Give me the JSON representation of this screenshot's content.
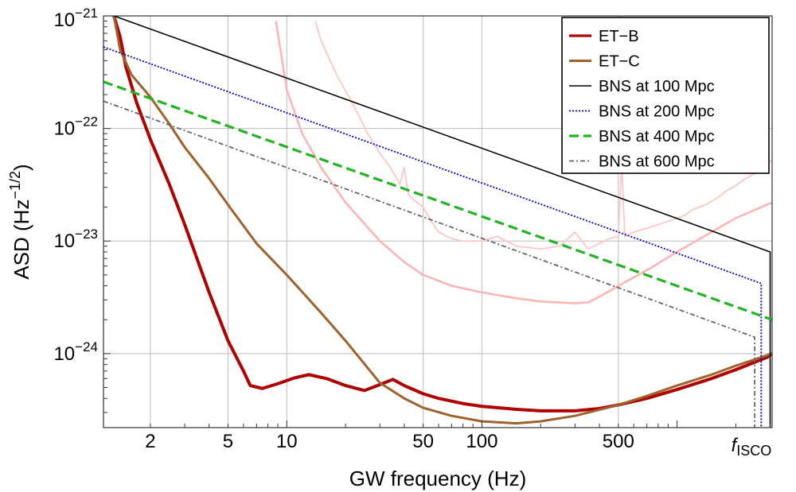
{
  "chart_data": {
    "type": "line",
    "title": "",
    "xlabel": "GW frequency (Hz)",
    "ylabel": "ASD (Hz",
    "ylabel_exp": "−1/2",
    "ylabel_end": ")",
    "xscale": "log",
    "yscale": "log",
    "xlim": [
      1.15,
      3070
    ],
    "ylim": [
      2.2e-25,
      1e-21
    ],
    "grid": true,
    "legend_position": "top-right",
    "x_ticks": [
      {
        "value": 2,
        "label": "2"
      },
      {
        "value": 5,
        "label": "5"
      },
      {
        "value": 10,
        "label": "10"
      },
      {
        "value": 50,
        "label": "50"
      },
      {
        "value": 100,
        "label": "100"
      },
      {
        "value": 500,
        "label": "500"
      }
    ],
    "x_special_label": {
      "value": 2900,
      "label": "f",
      "sub": "ISCO"
    },
    "y_ticks": [
      {
        "value": 1e-21,
        "base": "10",
        "exp": "−21"
      },
      {
        "value": 1e-22,
        "base": "10",
        "exp": "−22"
      },
      {
        "value": 1e-23,
        "base": "10",
        "exp": "−23"
      },
      {
        "value": 1e-24,
        "base": "10",
        "exp": "−24"
      }
    ],
    "series": [
      {
        "name": "ET−B",
        "color": "#b00000",
        "dash": "",
        "width": 4,
        "legend": true,
        "x": [
          1.3,
          1.4,
          1.5,
          1.7,
          2,
          2.5,
          3,
          4,
          5,
          6,
          6.5,
          7.5,
          9,
          11,
          13,
          16,
          20,
          25,
          30,
          35,
          40,
          50,
          60,
          80,
          100,
          150,
          200,
          300,
          400,
          500,
          700,
          1000,
          1500,
          2000,
          2900,
          3070
        ],
        "y": [
          1e-21,
          6.5e-22,
          3.5e-22,
          1.7e-22,
          8e-23,
          3.2e-23,
          1.4e-23,
          3.5e-24,
          1.3e-24,
          7e-25,
          5.2e-25,
          4.9e-25,
          5.4e-25,
          6.1e-25,
          6.5e-25,
          6e-25,
          5.2e-25,
          4.7e-25,
          5.3e-25,
          5.9e-25,
          5.2e-25,
          4.4e-25,
          4e-25,
          3.6e-25,
          3.4e-25,
          3.2e-25,
          3.1e-25,
          3.1e-25,
          3.25e-25,
          3.5e-25,
          4e-25,
          4.8e-25,
          6e-25,
          7.2e-25,
          9.3e-25,
          1e-24
        ]
      },
      {
        "name": "ET−C",
        "color": "#a0622d",
        "dash": "",
        "width": 3,
        "legend": true,
        "x": [
          1.3,
          1.4,
          1.6,
          2,
          2.5,
          3,
          4,
          5,
          7,
          10,
          15,
          20,
          30,
          40,
          50,
          70,
          100,
          150,
          200,
          300,
          500,
          700,
          1000,
          1500,
          2000,
          3070
        ],
        "y": [
          1e-21,
          5e-22,
          3e-22,
          1.9e-22,
          1.1e-22,
          6.8e-23,
          3.6e-23,
          2.1e-23,
          9.5e-24,
          5e-24,
          2.3e-24,
          1.3e-24,
          5.5e-25,
          4e-25,
          3.3e-25,
          2.8e-25,
          2.5e-25,
          2.4e-25,
          2.5e-25,
          2.8e-25,
          3.5e-25,
          4.2e-25,
          5.2e-25,
          6.5e-25,
          7.8e-25,
          1e-24
        ]
      },
      {
        "name": "BNS at 100 Mpc",
        "color": "#000000",
        "dash": "",
        "width": 1.6,
        "legend": true,
        "x": [
          1.3,
          3000,
          3000
        ],
        "y": [
          1e-21,
          8e-24,
          2.2e-25
        ]
      },
      {
        "name": "BNS at 200 Mpc",
        "color": "#0000cc",
        "dash": "2,2",
        "width": 1.8,
        "legend": true,
        "x": [
          1.15,
          2700,
          2700
        ],
        "y": [
          5.3e-22,
          4.2e-24,
          2.2e-25
        ]
      },
      {
        "name": "BNS at 400 Mpc",
        "color": "#22b422",
        "dash": "12,6",
        "width": 3.2,
        "legend": true,
        "x": [
          1.15,
          3070
        ],
        "y": [
          2.6e-22,
          2e-24
        ]
      },
      {
        "name": "BNS at 600 Mpc",
        "color": "#666666",
        "dash": "6,3,2,3",
        "width": 1.8,
        "legend": true,
        "x": [
          1.15,
          2500,
          2500
        ],
        "y": [
          1.75e-22,
          1.4e-24,
          2.2e-25
        ]
      },
      {
        "name": "",
        "color": "#ffb3b3",
        "dash": "",
        "width": 2.5,
        "legend": false,
        "x": [
          8.8,
          10,
          12,
          15,
          20,
          30,
          40,
          50,
          70,
          100,
          150,
          200,
          300,
          350,
          400,
          500,
          700,
          1000,
          1500,
          2000,
          3070
        ],
        "y": [
          9e-22,
          2.2e-22,
          9e-23,
          4.5e-23,
          2.2e-23,
          1e-23,
          6.5e-24,
          5e-24,
          4e-24,
          3.5e-24,
          3.1e-24,
          2.9e-24,
          2.8e-24,
          2.85e-24,
          3.2e-24,
          4e-24,
          5.5e-24,
          8e-24,
          1.2e-23,
          1.6e-23,
          2.2e-23
        ]
      },
      {
        "name": "",
        "color": "#ffc6c6",
        "dash": "",
        "width": 1.8,
        "legend": false,
        "x": [
          14,
          15,
          18,
          22,
          26,
          30,
          34,
          38,
          40,
          42,
          45,
          50,
          55,
          60,
          70,
          80,
          100,
          120,
          150,
          200,
          250,
          300,
          350,
          400,
          450,
          500,
          520,
          540,
          600,
          700,
          800,
          900,
          1000,
          1100,
          1200,
          1400,
          1600,
          1800,
          2000,
          2200,
          2500,
          2800,
          3070
        ],
        "y": [
          9e-22,
          6e-22,
          3e-22,
          1.6e-22,
          9e-23,
          6e-23,
          4.5e-23,
          3.2e-23,
          4.5e-23,
          2.6e-23,
          2.3e-23,
          2e-23,
          1.5e-23,
          1.2e-23,
          1.05e-23,
          1e-23,
          1e-23,
          1.1e-23,
          9e-24,
          8.5e-24,
          9e-24,
          1.2e-23,
          8.5e-24,
          9.5e-24,
          1.05e-23,
          1.1e-23,
          5e-23,
          1.1e-23,
          1.2e-23,
          1.3e-23,
          1.4e-23,
          1.5e-23,
          1.6e-23,
          1.7e-23,
          1.9e-23,
          2.1e-23,
          2.4e-23,
          2.8e-23,
          3.1e-23,
          3.5e-23,
          4e-23,
          4.8e-23,
          5.2e-23
        ]
      }
    ]
  }
}
